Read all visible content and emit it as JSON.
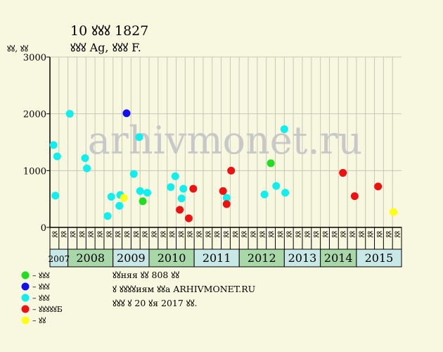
{
  "chart_data": {
    "type": "scatter",
    "title": "10 ꙋꙋꙋ 1827",
    "subtitle": "ꙋꙋꙋ Ag, ꙋꙋꙋ F.",
    "ylabel": "ꙋꙋ, ꙋꙋ",
    "ylim": [
      0,
      3000
    ],
    "yticks": [
      0,
      1000,
      2000,
      3000
    ],
    "grid": true,
    "watermark": "arhivmonet.ru",
    "colors": {
      "background": "#f8f8e0",
      "plot_bg": "#f8f8e0",
      "grid": "#c8c8b4",
      "axis": "#000000",
      "year_bg_a": "#a8d8a8",
      "year_bg_b": "#c8e8e8",
      "watermark": "#c8c8c8"
    },
    "half_month_labels": [
      "ꙋꙋ",
      "ꙋꙋ",
      "ꙋꙋ",
      "ꙋꙋ",
      "ꙋꙋ",
      "ꙋꙋ",
      "ꙋꙋ",
      "ꙋꙋ",
      "ꙋꙋ",
      "ꙋꙋ",
      "ꙋꙋ",
      "ꙋꙋ",
      "ꙋꙋ",
      "ꙋꙋ",
      "ꙋꙋ",
      "ꙋꙋ",
      "ꙋꙋ",
      "ꙋꙋ",
      "ꙋꙋ",
      "ꙋꙋ",
      "ꙋꙋ",
      "ꙋꙋ",
      "ꙋꙋ",
      "ꙋꙋ",
      "ꙋꙋ",
      "ꙋꙋ",
      "ꙋꙋ",
      "ꙋꙋ",
      "ꙋꙋ",
      "ꙋꙋ",
      "ꙋꙋ",
      "ꙋꙋ",
      "ꙋꙋ",
      "ꙋꙋ",
      "ꙋꙋ",
      "ꙋꙋ",
      "ꙋꙋ",
      "ꙋꙋ",
      "ꙋꙋ"
    ],
    "years": [
      {
        "label": "2007",
        "start": 0,
        "span": 2
      },
      {
        "label": "2008",
        "start": 2,
        "span": 5
      },
      {
        "label": "2009",
        "start": 7,
        "span": 4
      },
      {
        "label": "2010",
        "start": 11,
        "span": 5
      },
      {
        "label": "2011",
        "start": 16,
        "span": 5
      },
      {
        "label": "2012",
        "start": 21,
        "span": 5
      },
      {
        "label": "2013",
        "start": 26,
        "span": 4
      },
      {
        "label": "2014",
        "start": 30,
        "span": 4
      },
      {
        "label": "2015",
        "start": 34,
        "span": 5
      }
    ],
    "series": [
      {
        "name": "– ꙋꙋꙋ",
        "color": "#22dd22",
        "points": [
          {
            "x": 10.3,
            "y": 460
          },
          {
            "x": 24.5,
            "y": 1130
          }
        ]
      },
      {
        "name": "– ꙋꙋꙋ",
        "color": "#1111ee",
        "points": [
          {
            "x": 8.5,
            "y": 2010
          }
        ]
      },
      {
        "name": "– ꙋꙋꙋ",
        "color": "#11eeee",
        "points": [
          {
            "x": 0.4,
            "y": 1450
          },
          {
            "x": 0.6,
            "y": 560
          },
          {
            "x": 0.8,
            "y": 1250
          },
          {
            "x": 2.2,
            "y": 2000
          },
          {
            "x": 3.9,
            "y": 1220
          },
          {
            "x": 4.1,
            "y": 1040
          },
          {
            "x": 6.4,
            "y": 200
          },
          {
            "x": 6.8,
            "y": 540
          },
          {
            "x": 7.7,
            "y": 380
          },
          {
            "x": 7.8,
            "y": 570
          },
          {
            "x": 9.3,
            "y": 940
          },
          {
            "x": 10.0,
            "y": 640
          },
          {
            "x": 9.9,
            "y": 1590
          },
          {
            "x": 10.8,
            "y": 610
          },
          {
            "x": 13.4,
            "y": 710
          },
          {
            "x": 13.9,
            "y": 900
          },
          {
            "x": 14.6,
            "y": 510
          },
          {
            "x": 14.8,
            "y": 680
          },
          {
            "x": 19.6,
            "y": 520
          },
          {
            "x": 23.8,
            "y": 580
          },
          {
            "x": 25.1,
            "y": 730
          },
          {
            "x": 26.0,
            "y": 1730
          },
          {
            "x": 26.1,
            "y": 610
          }
        ]
      },
      {
        "name": "– ꙋꙋꙋꙋꙋБ",
        "color": "#ee1111",
        "points": [
          {
            "x": 14.4,
            "y": 310
          },
          {
            "x": 15.4,
            "y": 160
          },
          {
            "x": 15.9,
            "y": 680
          },
          {
            "x": 19.2,
            "y": 640
          },
          {
            "x": 19.6,
            "y": 410
          },
          {
            "x": 20.1,
            "y": 1000
          },
          {
            "x": 32.5,
            "y": 960
          },
          {
            "x": 33.8,
            "y": 550
          },
          {
            "x": 36.4,
            "y": 720
          }
        ]
      },
      {
        "name": "– ꙋꙋ",
        "color": "#ffff11",
        "points": [
          {
            "x": 8.2,
            "y": 520
          },
          {
            "x": 38.1,
            "y": 270
          }
        ]
      }
    ]
  },
  "notes": [
    "ꙋꙋняя ꙋꙋ 808 ꙋꙋ",
    "ꙋ ꙋꙋꙋꙋиям ꙋꙋа ARHIVMONET.RU",
    "ꙋꙋꙋ ꙋ 20 ꙋя 2017 ꙋꙋ."
  ]
}
